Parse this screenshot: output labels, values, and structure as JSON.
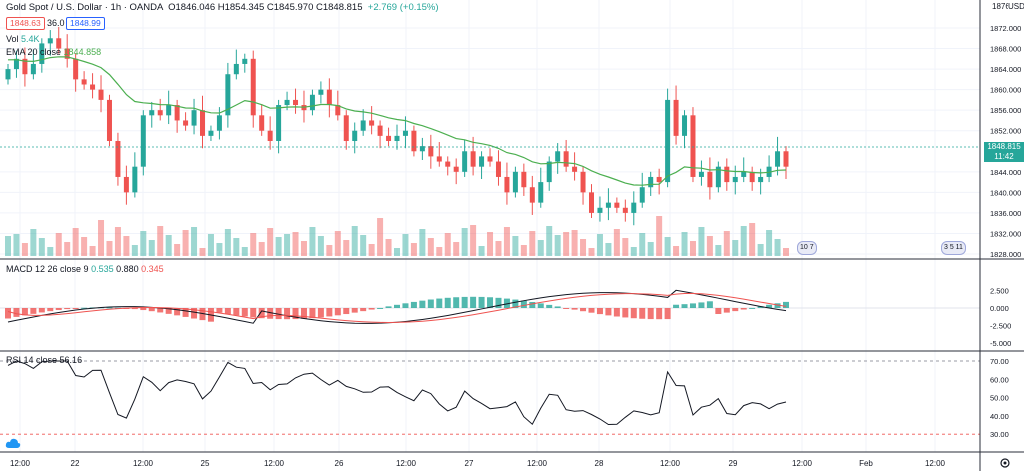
{
  "header": {
    "symbol": "Gold Spot / U.S. Dollar · 1h · OANDA",
    "ohlc": "O1846.046  H1854.345  C1845.970  C1848.815",
    "change": "+2.769 (+0.15%)",
    "sell_price": "1848.63",
    "spread": "36.0",
    "buy_price": "1848.99",
    "vol_label": "Vol",
    "vol_value": "5.4K",
    "ema_label": "EMA 20 close",
    "ema_value": "1844.858",
    "usd_label": "USD"
  },
  "price_axis": {
    "ticks": [
      "1872.000",
      "1868.000",
      "1864.000",
      "1860.000",
      "1856.000",
      "1852.000",
      "1844.000",
      "1840.000",
      "1836.000",
      "1832.000",
      "1828.000"
    ],
    "top_label": "1876.000",
    "current_price": "1848.815",
    "countdown": "11:42"
  },
  "macd": {
    "label": "MACD 12 26 close 9",
    "v1": "0.535",
    "v2": "0.880",
    "v3": "0.345",
    "ticks": [
      "2.500",
      "0.000",
      "-2.500",
      "-5.000"
    ]
  },
  "rsi": {
    "label": "RSI 14 close",
    "value": "56.16",
    "ticks": [
      "70.00",
      "60.00",
      "50.00",
      "40.00",
      "30.00"
    ]
  },
  "time_axis": [
    "12:00",
    "22",
    "12:00",
    "25",
    "12:00",
    "26",
    "12:00",
    "27",
    "12:00",
    "28",
    "12:00",
    "29",
    "12:00",
    "Feb",
    "12:00"
  ],
  "events": [
    "10 7",
    "3 5 11"
  ],
  "colors": {
    "up": "#26a69a",
    "down": "#ef5350",
    "ema": "#4caf50",
    "upvol": "#26a69a",
    "downvol": "#ef5350"
  }
}
